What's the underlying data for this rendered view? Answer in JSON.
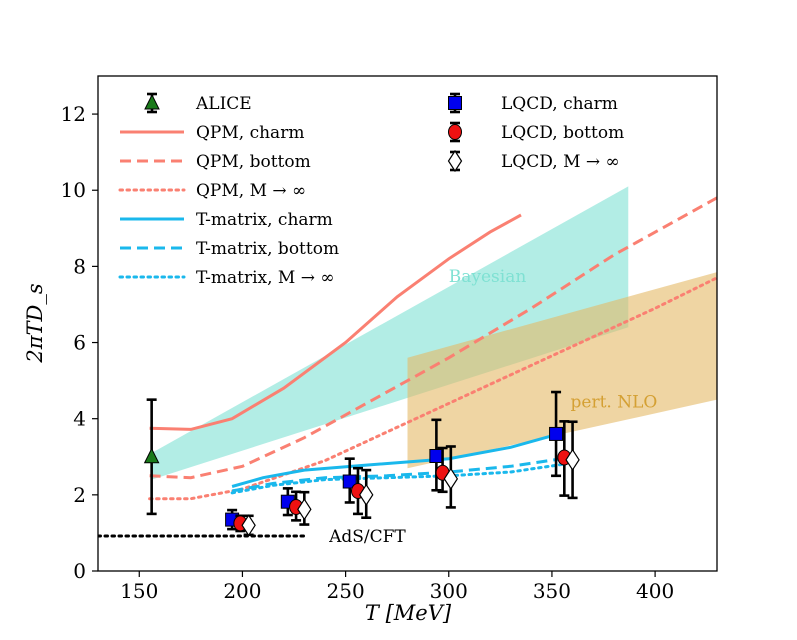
{
  "chart_data": {
    "type": "line",
    "title": "",
    "xlabel": "T [MeV]",
    "ylabel": "2πTD_s",
    "xlim": [
      130,
      430
    ],
    "ylim": [
      0,
      13
    ],
    "xticks": [
      150,
      200,
      250,
      300,
      350,
      400
    ],
    "yticks": [
      0,
      2,
      4,
      6,
      8,
      10,
      12
    ],
    "grid": false,
    "legend_placement": "top",
    "series": [
      {
        "name": "QPM, charm",
        "style": "solid",
        "color": "#fa8072",
        "x": [
          155,
          175,
          195,
          220,
          250,
          275,
          300,
          320,
          335
        ],
        "y": [
          3.75,
          3.72,
          4.0,
          4.8,
          6.0,
          7.2,
          8.2,
          8.9,
          9.35
        ]
      },
      {
        "name": "QPM, bottom",
        "style": "dashed",
        "color": "#fa8072",
        "x": [
          155,
          175,
          200,
          230,
          260,
          300,
          340,
          380,
          430
        ],
        "y": [
          2.5,
          2.45,
          2.75,
          3.5,
          4.4,
          5.6,
          6.9,
          8.3,
          9.8
        ]
      },
      {
        "name": "QPM, M → ∞",
        "style": "dotted",
        "color": "#fa8072",
        "x": [
          155,
          175,
          200,
          240,
          280,
          320,
          360,
          400,
          430
        ],
        "y": [
          1.9,
          1.9,
          2.15,
          2.9,
          3.9,
          4.9,
          5.9,
          6.9,
          7.7
        ]
      },
      {
        "name": "T-matrix, charm",
        "style": "solid",
        "color": "#1ab8ec",
        "x": [
          195,
          210,
          230,
          260,
          300,
          330,
          350
        ],
        "y": [
          2.22,
          2.45,
          2.65,
          2.78,
          2.95,
          3.25,
          3.55
        ]
      },
      {
        "name": "T-matrix, bottom",
        "style": "dashed",
        "color": "#1ab8ec",
        "x": [
          195,
          215,
          240,
          270,
          300,
          330,
          355
        ],
        "y": [
          2.1,
          2.3,
          2.45,
          2.5,
          2.6,
          2.75,
          2.95
        ]
      },
      {
        "name": "T-matrix, M → ∞",
        "style": "dotted",
        "color": "#1ab8ec",
        "x": [
          195,
          215,
          240,
          270,
          300,
          330,
          355
        ],
        "y": [
          2.05,
          2.25,
          2.4,
          2.45,
          2.5,
          2.6,
          2.8
        ]
      },
      {
        "name": "AdS/CFT",
        "style": "dotted",
        "color": "#000000",
        "x": [
          130,
          230
        ],
        "y": [
          0.92,
          0.92
        ]
      }
    ],
    "bands": [
      {
        "name": "Bayesian",
        "color": "#7fe1d3",
        "x": [
          156,
          387
        ],
        "lower": [
          2.4,
          6.4
        ],
        "upper": [
          3.1,
          10.1
        ]
      },
      {
        "name": "pert. NLO",
        "color": "#e5b965",
        "x": [
          280,
          430
        ],
        "lower": [
          2.7,
          4.5
        ],
        "upper": [
          5.6,
          7.85
        ]
      }
    ],
    "points": [
      {
        "name": "ALICE",
        "marker": "triangle",
        "color": "#1a7a1a",
        "x": [
          156
        ],
        "y": [
          3.0
        ],
        "yerr_low": [
          1.5
        ],
        "yerr_high": [
          1.5
        ]
      },
      {
        "name": "LQCD, charm",
        "marker": "square",
        "color": "#0000ee",
        "x": [
          195,
          222,
          252,
          294,
          352
        ],
        "y": [
          1.35,
          1.82,
          2.35,
          3.02,
          3.6
        ],
        "yerr_low": [
          0.25,
          0.35,
          0.55,
          0.9,
          1.1
        ],
        "yerr_high": [
          0.25,
          0.35,
          0.6,
          0.95,
          1.1
        ]
      },
      {
        "name": "LQCD, bottom",
        "marker": "circle",
        "color": "#ee1111",
        "x": [
          199,
          226,
          256,
          297,
          356
        ],
        "y": [
          1.25,
          1.68,
          2.1,
          2.58,
          2.98
        ],
        "yerr_low": [
          0.2,
          0.35,
          0.6,
          0.5,
          1.0
        ],
        "yerr_high": [
          0.2,
          0.4,
          0.6,
          0.65,
          0.95
        ]
      },
      {
        "name": "LQCD, M → ∞",
        "marker": "diamond",
        "color": "#ffffff",
        "x": [
          203,
          230,
          260,
          301,
          360
        ],
        "y": [
          1.2,
          1.62,
          2.0,
          2.42,
          2.92
        ],
        "yerr_low": [
          0.25,
          0.4,
          0.6,
          0.75,
          1.0
        ],
        "yerr_high": [
          0.25,
          0.45,
          0.65,
          0.85,
          1.0
        ]
      }
    ],
    "annotations": [
      {
        "text": "Bayesian",
        "x": 300,
        "y": 7.75,
        "color": "#7fe1d3"
      },
      {
        "text": "pert. NLO",
        "x": 359,
        "y": 4.45,
        "color": "#d4a033"
      },
      {
        "text": "AdS/CFT",
        "x": 242,
        "y": 0.92,
        "color": "#000000"
      }
    ],
    "legend_left": [
      "ALICE",
      "QPM, charm",
      "QPM, bottom",
      "QPM, M → ∞",
      "T-matrix, charm",
      "T-matrix, bottom",
      "T-matrix, M → ∞"
    ],
    "legend_right": [
      "LQCD, charm",
      "LQCD, bottom",
      "LQCD, M → ∞"
    ]
  }
}
